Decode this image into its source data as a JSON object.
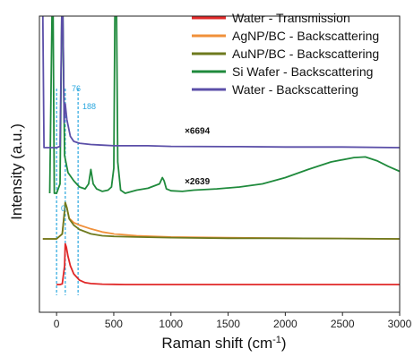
{
  "chart_data": {
    "type": "line",
    "title": "",
    "xlabel": "Raman shift (cm-1)",
    "ylabel": "Intensity (a.u.)",
    "xlim": [
      -150,
      3000
    ],
    "x_ticks": [
      0,
      500,
      1000,
      1500,
      2000,
      2500,
      3000
    ],
    "y_ticks_shown": false,
    "legend_position": "top-right",
    "series": [
      {
        "name": "Water - Transmission",
        "color": "#e02828",
        "offset": 0,
        "points": [
          [
            0,
            0.0
          ],
          [
            30,
            0.0
          ],
          [
            50,
            0.01
          ],
          [
            70,
            0.3
          ],
          [
            76,
            0.65
          ],
          [
            85,
            0.6
          ],
          [
            100,
            0.45
          ],
          [
            120,
            0.3
          ],
          [
            150,
            0.17
          ],
          [
            200,
            0.07
          ],
          [
            250,
            0.03
          ],
          [
            300,
            0.015
          ],
          [
            400,
            0.005
          ],
          [
            600,
            0.0
          ],
          [
            3000,
            0.0
          ]
        ]
      },
      {
        "name": "AgNP/BC - Backscattering",
        "color": "#f0903a",
        "offset": 1,
        "points": [
          [
            -120,
            0.0
          ],
          [
            0,
            0.0
          ],
          [
            50,
            0.08
          ],
          [
            70,
            0.45
          ],
          [
            76,
            0.58
          ],
          [
            90,
            0.5
          ],
          [
            110,
            0.33
          ],
          [
            150,
            0.26
          ],
          [
            200,
            0.22
          ],
          [
            300,
            0.16
          ],
          [
            400,
            0.11
          ],
          [
            500,
            0.08
          ],
          [
            700,
            0.05
          ],
          [
            1000,
            0.03
          ],
          [
            1500,
            0.02
          ],
          [
            2000,
            0.01
          ],
          [
            2500,
            0.005
          ],
          [
            3000,
            0.0
          ]
        ]
      },
      {
        "name": "AuNP/BC - Backscattering",
        "color": "#6e7a1e",
        "offset": 1,
        "points": [
          [
            -120,
            0.0
          ],
          [
            0,
            0.0
          ],
          [
            50,
            0.08
          ],
          [
            70,
            0.45
          ],
          [
            76,
            0.58
          ],
          [
            90,
            0.5
          ],
          [
            110,
            0.32
          ],
          [
            150,
            0.22
          ],
          [
            200,
            0.15
          ],
          [
            300,
            0.08
          ],
          [
            400,
            0.05
          ],
          [
            500,
            0.04
          ],
          [
            700,
            0.03
          ],
          [
            1000,
            0.02
          ],
          [
            1500,
            0.01
          ],
          [
            2000,
            0.01
          ],
          [
            3000,
            0.0
          ]
        ]
      },
      {
        "name": "Si Wafer - Backscattering",
        "color": "#1f8a3c",
        "offset": 2,
        "points": [
          [
            -60,
            0.0
          ],
          [
            -40,
            3.3
          ],
          [
            -30,
            3.3
          ],
          [
            -20,
            0.0
          ],
          [
            0,
            0.0
          ],
          [
            30,
            0.15
          ],
          [
            45,
            3.3
          ],
          [
            55,
            3.3
          ],
          [
            70,
            0.6
          ],
          [
            100,
            0.33
          ],
          [
            150,
            0.2
          ],
          [
            200,
            0.1
          ],
          [
            250,
            0.07
          ],
          [
            280,
            0.15
          ],
          [
            300,
            0.38
          ],
          [
            320,
            0.15
          ],
          [
            350,
            0.07
          ],
          [
            400,
            0.03
          ],
          [
            450,
            0.05
          ],
          [
            480,
            0.1
          ],
          [
            500,
            0.4
          ],
          [
            510,
            3.3
          ],
          [
            525,
            3.3
          ],
          [
            535,
            0.5
          ],
          [
            560,
            0.05
          ],
          [
            600,
            0.0
          ],
          [
            700,
            0.05
          ],
          [
            800,
            0.08
          ],
          [
            900,
            0.15
          ],
          [
            925,
            0.25
          ],
          [
            940,
            0.2
          ],
          [
            960,
            0.07
          ],
          [
            1000,
            0.04
          ],
          [
            1100,
            0.03
          ],
          [
            1200,
            0.05
          ],
          [
            1400,
            0.07
          ],
          [
            1600,
            0.1
          ],
          [
            1800,
            0.15
          ],
          [
            2000,
            0.25
          ],
          [
            2200,
            0.38
          ],
          [
            2400,
            0.5
          ],
          [
            2600,
            0.57
          ],
          [
            2700,
            0.58
          ],
          [
            2800,
            0.52
          ],
          [
            2900,
            0.43
          ],
          [
            3000,
            0.35
          ]
        ]
      },
      {
        "name": "Water - Backscattering",
        "color": "#5b4fa8",
        "offset": 3,
        "points": [
          [
            -120,
            3.3
          ],
          [
            -110,
            0.0
          ],
          [
            0,
            0.0
          ],
          [
            30,
            0.02
          ],
          [
            45,
            3.3
          ],
          [
            55,
            3.3
          ],
          [
            66,
            0.4
          ],
          [
            76,
            0.7
          ],
          [
            90,
            0.45
          ],
          [
            120,
            0.18
          ],
          [
            150,
            0.1
          ],
          [
            200,
            0.07
          ],
          [
            300,
            0.05
          ],
          [
            400,
            0.04
          ],
          [
            500,
            0.03
          ],
          [
            800,
            0.03
          ],
          [
            1000,
            0.02
          ],
          [
            1600,
            0.015
          ],
          [
            2000,
            0.01
          ],
          [
            2500,
            0.01
          ],
          [
            3000,
            0.0
          ]
        ]
      }
    ],
    "annotations": {
      "multipliers": [
        {
          "text": "×6694",
          "x": 1230,
          "offset": 3,
          "y": 0.22
        },
        {
          "text": "×2639",
          "x": 1230,
          "offset": 2,
          "y": 0.14
        }
      ],
      "peak_markers": [
        {
          "label": "0",
          "x": 0
        },
        {
          "label": "76",
          "x": 76
        },
        {
          "label": "188",
          "x": 188
        }
      ]
    }
  }
}
